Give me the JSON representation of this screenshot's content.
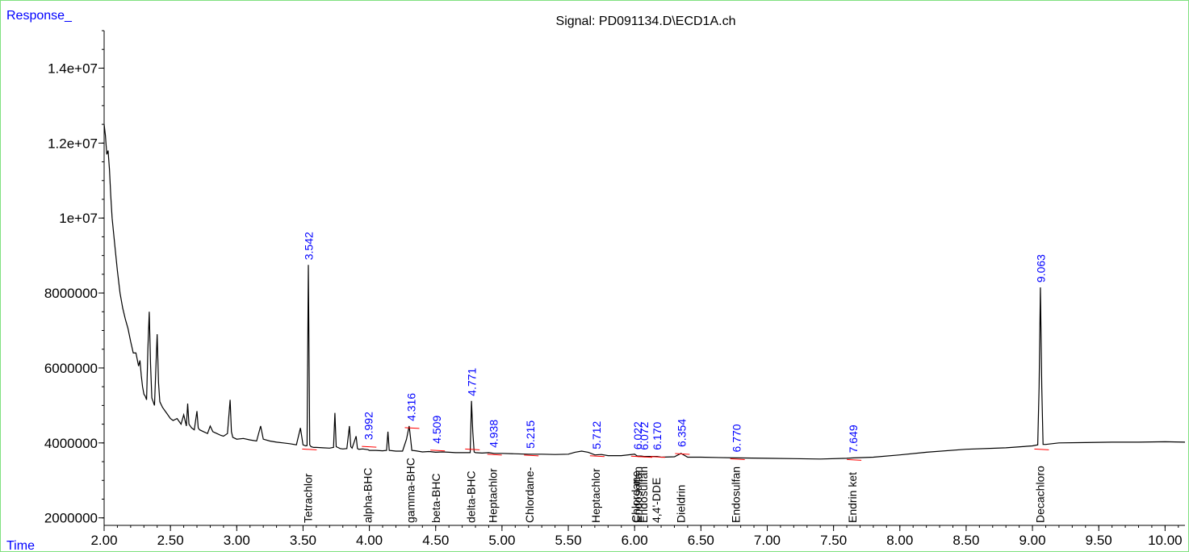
{
  "chart_data": {
    "type": "line",
    "title": "Signal: PD091134.D\\ECD1A.ch",
    "ylabel": "Response_",
    "xlabel": "Time",
    "xlim": [
      2.0,
      10.15
    ],
    "ylim": [
      1800000,
      15000000
    ],
    "x_ticks": [
      2.0,
      2.5,
      3.0,
      3.5,
      4.0,
      4.5,
      5.0,
      5.5,
      6.0,
      6.5,
      7.0,
      7.5,
      8.0,
      8.5,
      9.0,
      9.5,
      10.0
    ],
    "x_tick_labels": [
      "2.00",
      "2.50",
      "3.00",
      "3.50",
      "4.00",
      "4.50",
      "5.00",
      "5.50",
      "6.00",
      "6.50",
      "7.00",
      "7.50",
      "8.00",
      "8.50",
      "9.00",
      "9.50",
      "10.00"
    ],
    "y_ticks": [
      2000000,
      4000000,
      6000000,
      8000000,
      10000000,
      12000000,
      14000000
    ],
    "y_tick_labels": [
      "2000000",
      "4000000",
      "6000000",
      "8000000",
      "1e+07",
      "1.2e+07",
      "1.4e+07"
    ],
    "series": [
      {
        "x": [
          2.0,
          2.01,
          2.02,
          2.03,
          2.04,
          2.05,
          2.06,
          2.08,
          2.1,
          2.12,
          2.14,
          2.16,
          2.18,
          2.2,
          2.22,
          2.24,
          2.26,
          2.27,
          2.28,
          2.29,
          2.3,
          2.31,
          2.32,
          2.33,
          2.34,
          2.35,
          2.36,
          2.38,
          2.39,
          2.4,
          2.41,
          2.42,
          2.44,
          2.46,
          2.48,
          2.5,
          2.52,
          2.55,
          2.58,
          2.6,
          2.62,
          2.63,
          2.64,
          2.66,
          2.68,
          2.7,
          2.71,
          2.72,
          2.75,
          2.78,
          2.8,
          2.82,
          2.85,
          2.88,
          2.9,
          2.93,
          2.95,
          2.96,
          2.97,
          3.0,
          3.05,
          3.1,
          3.15,
          3.18,
          3.2,
          3.25,
          3.3,
          3.35,
          3.4,
          3.45,
          3.48,
          3.5,
          3.52,
          3.53,
          3.54,
          3.55,
          3.56,
          3.58,
          3.6,
          3.65,
          3.7,
          3.73,
          3.74,
          3.75,
          3.78,
          3.8,
          3.83,
          3.85,
          3.86,
          3.87,
          3.9,
          3.91,
          3.92,
          3.95,
          3.99,
          4.0,
          4.05,
          4.1,
          4.13,
          4.14,
          4.15,
          4.2,
          4.25,
          4.28,
          4.3,
          4.31,
          4.32,
          4.35,
          4.4,
          4.45,
          4.5,
          4.55,
          4.6,
          4.65,
          4.7,
          4.75,
          4.76,
          4.77,
          4.78,
          4.79,
          4.8,
          4.85,
          4.9,
          4.94,
          5.0,
          5.1,
          5.2,
          5.3,
          5.4,
          5.5,
          5.55,
          5.6,
          5.65,
          5.7,
          5.75,
          5.8,
          5.9,
          6.0,
          6.02,
          6.05,
          6.07,
          6.1,
          6.15,
          6.17,
          6.2,
          6.3,
          6.35,
          6.4,
          6.5,
          6.77,
          7.0,
          7.2,
          7.4,
          7.6,
          7.65,
          7.8,
          8.0,
          8.2,
          8.5,
          8.8,
          9.0,
          9.04,
          9.05,
          9.06,
          9.07,
          9.08,
          9.1,
          9.2,
          9.4,
          9.6,
          9.8,
          10.0,
          10.15
        ],
        "y": [
          12500000,
          12200000,
          11700000,
          11800000,
          11300000,
          10600000,
          10000000,
          9300000,
          8600000,
          8000000,
          7600000,
          7300000,
          7050000,
          6700000,
          6400000,
          6400000,
          6050000,
          6200000,
          5800000,
          5500000,
          5300000,
          5250000,
          5150000,
          6500000,
          7500000,
          6100000,
          5200000,
          5000000,
          6000000,
          6900000,
          5600000,
          5100000,
          4950000,
          4850000,
          4750000,
          4650000,
          4600000,
          4650000,
          4500000,
          4750000,
          4450000,
          5050000,
          4500000,
          4400000,
          4350000,
          4850000,
          4400000,
          4350000,
          4300000,
          4250000,
          4450000,
          4300000,
          4250000,
          4200000,
          4180000,
          4250000,
          5150000,
          4300000,
          4150000,
          4100000,
          4120000,
          4080000,
          4050000,
          4450000,
          4100000,
          4050000,
          4020000,
          4000000,
          3980000,
          3950000,
          4400000,
          3950000,
          3920000,
          3930000,
          8750000,
          3950000,
          3900000,
          3880000,
          3880000,
          3870000,
          3860000,
          3880000,
          4800000,
          3900000,
          3850000,
          3840000,
          3850000,
          4450000,
          3900000,
          3860000,
          4180000,
          3850000,
          3830000,
          3840000,
          3820000,
          3800000,
          3800000,
          3790000,
          3800000,
          4300000,
          3800000,
          3780000,
          3780000,
          4100000,
          4450000,
          4150000,
          3800000,
          3790000,
          3760000,
          3770000,
          3750000,
          3760000,
          3750000,
          3740000,
          3740000,
          3740000,
          3740000,
          5120000,
          4300000,
          3760000,
          3740000,
          3730000,
          3740000,
          3720000,
          3720000,
          3710000,
          3700000,
          3700000,
          3690000,
          3700000,
          3750000,
          3780000,
          3750000,
          3680000,
          3690000,
          3660000,
          3660000,
          3700000,
          3650000,
          3650000,
          3640000,
          3640000,
          3640000,
          3640000,
          3620000,
          3630000,
          3720000,
          3620000,
          3620000,
          3600000,
          3590000,
          3580000,
          3570000,
          3590000,
          3600000,
          3620000,
          3680000,
          3750000,
          3830000,
          3870000,
          3920000,
          3950000,
          5500000,
          8150000,
          5500000,
          3960000,
          3960000,
          4000000,
          4010000,
          4020000,
          4020000,
          4030000,
          4020000
        ]
      }
    ],
    "peaks": [
      {
        "rt": "3.542",
        "x": 3.542,
        "y": 8750000
      },
      {
        "rt": "3.992",
        "x": 3.992,
        "y": 3950000
      },
      {
        "rt": "4.316",
        "x": 4.316,
        "y": 4450000
      },
      {
        "rt": "4.509",
        "x": 4.509,
        "y": 3850000
      },
      {
        "rt": "4.771",
        "x": 4.771,
        "y": 5120000
      },
      {
        "rt": "4.938",
        "x": 4.938,
        "y": 3740000
      },
      {
        "rt": "5.215",
        "x": 5.215,
        "y": 3720000
      },
      {
        "rt": "5.712",
        "x": 5.712,
        "y": 3700000
      },
      {
        "rt": "6.022",
        "x": 6.022,
        "y": 3690000
      },
      {
        "rt": "6.072",
        "x": 6.072,
        "y": 3680000
      },
      {
        "rt": "6.170",
        "x": 6.17,
        "y": 3680000
      },
      {
        "rt": "6.354",
        "x": 6.354,
        "y": 3760000
      },
      {
        "rt": "6.770",
        "x": 6.77,
        "y": 3620000
      },
      {
        "rt": "7.649",
        "x": 7.649,
        "y": 3600000
      },
      {
        "rt": "9.063",
        "x": 9.063,
        "y": 8150000
      }
    ],
    "compounds": [
      {
        "name": "Tetrachlor",
        "x": 3.542
      },
      {
        "name": "alpha-BHC",
        "x": 3.992
      },
      {
        "name": "gamma-BHC",
        "x": 4.316
      },
      {
        "name": "beta-BHC",
        "x": 4.509
      },
      {
        "name": "delta-BHC",
        "x": 4.771
      },
      {
        "name": "Heptachlor",
        "x": 4.938
      },
      {
        "name": "Chlordane-",
        "x": 5.215
      },
      {
        "name": "Heptachlor",
        "x": 5.712
      },
      {
        "name": "Chlordane",
        "x": 6.015
      },
      {
        "name": "Endosulfan",
        "x": 6.028
      },
      {
        "name": "Endosulfan",
        "x": 6.072
      },
      {
        "name": "4,4'-DDE",
        "x": 6.17
      },
      {
        "name": "Dieldrin",
        "x": 6.354
      },
      {
        "name": "Endosulfan",
        "x": 6.77
      },
      {
        "name": "Endrin ket",
        "x": 7.649
      },
      {
        "name": "Decachloro",
        "x": 9.063
      }
    ],
    "colors": {
      "trace": "#000000",
      "peak_label": "#0000ff",
      "baseline_mark": "#ff0000",
      "axis_label": "#0000ff",
      "frame": "#80e080"
    }
  }
}
